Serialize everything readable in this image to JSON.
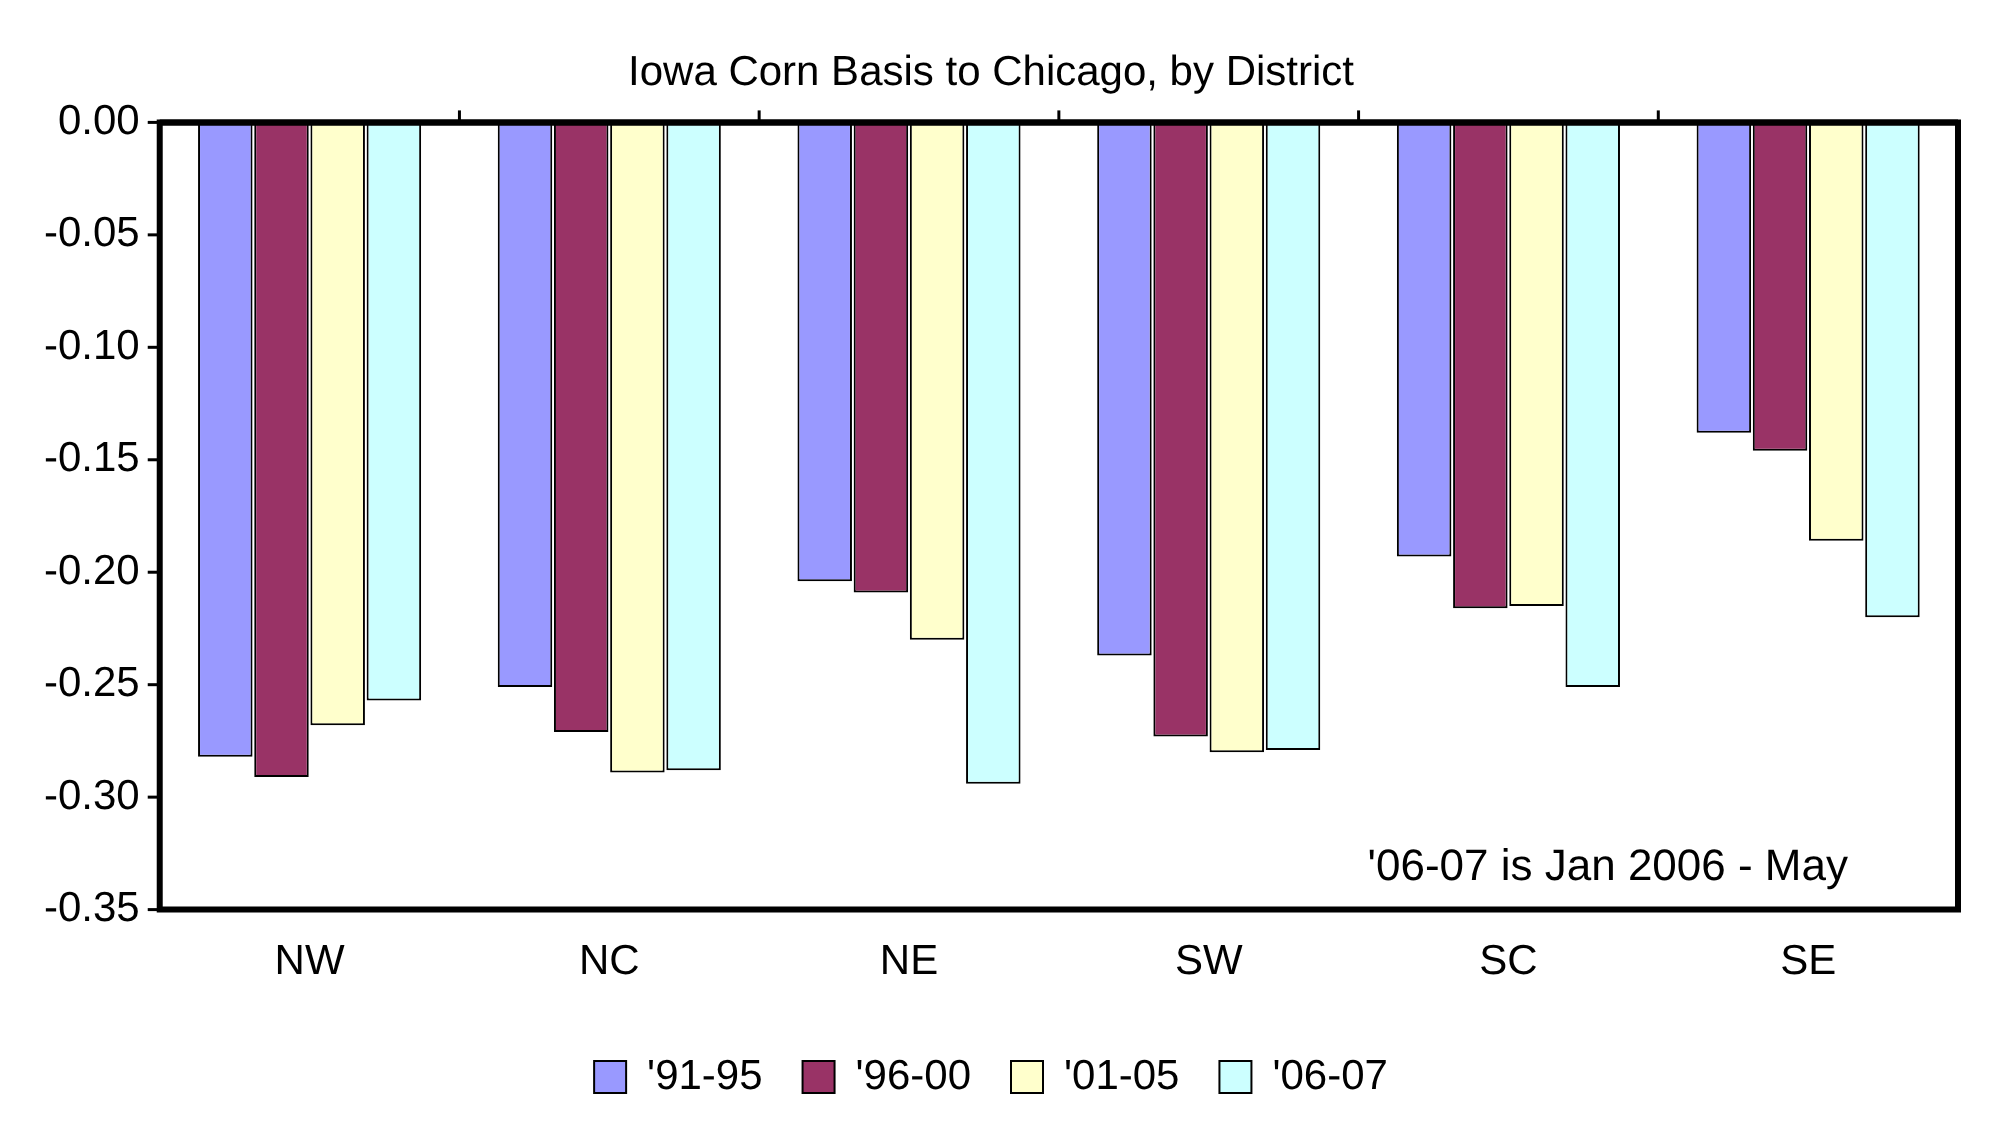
{
  "chart_data": {
    "type": "bar",
    "title": "Iowa Corn Basis to Chicago, by District",
    "categories": [
      "NW",
      "NC",
      "NE",
      "SW",
      "SC",
      "SE"
    ],
    "series": [
      {
        "name": "'91-95",
        "color": "#9999ff",
        "values": [
          -0.282,
          -0.251,
          -0.204,
          -0.237,
          -0.193,
          -0.138
        ]
      },
      {
        "name": "'96-00",
        "color": "#993366",
        "values": [
          -0.291,
          -0.271,
          -0.209,
          -0.273,
          -0.216,
          -0.146
        ]
      },
      {
        "name": "'01-05",
        "color": "#ffffcc",
        "values": [
          -0.268,
          -0.289,
          -0.23,
          -0.28,
          -0.215,
          -0.186
        ]
      },
      {
        "name": "'06-07",
        "color": "#ccffff",
        "values": [
          -0.257,
          -0.288,
          -0.294,
          -0.279,
          -0.251,
          -0.22
        ]
      }
    ],
    "ylim": [
      -0.35,
      0
    ],
    "yticks": [
      {
        "value": 0,
        "label": "0.00"
      },
      {
        "value": -0.05,
        "label": "-0.05"
      },
      {
        "value": -0.1,
        "label": "-0.10"
      },
      {
        "value": -0.15,
        "label": "-0.15"
      },
      {
        "value": -0.2,
        "label": "-0.20"
      },
      {
        "value": -0.25,
        "label": "-0.25"
      },
      {
        "value": -0.3,
        "label": "-0.30"
      },
      {
        "value": -0.35,
        "label": "-0.35"
      }
    ],
    "grid": false,
    "legend": "bottom",
    "annotations": [
      "'06-07 is Jan 2006 - May"
    ]
  }
}
